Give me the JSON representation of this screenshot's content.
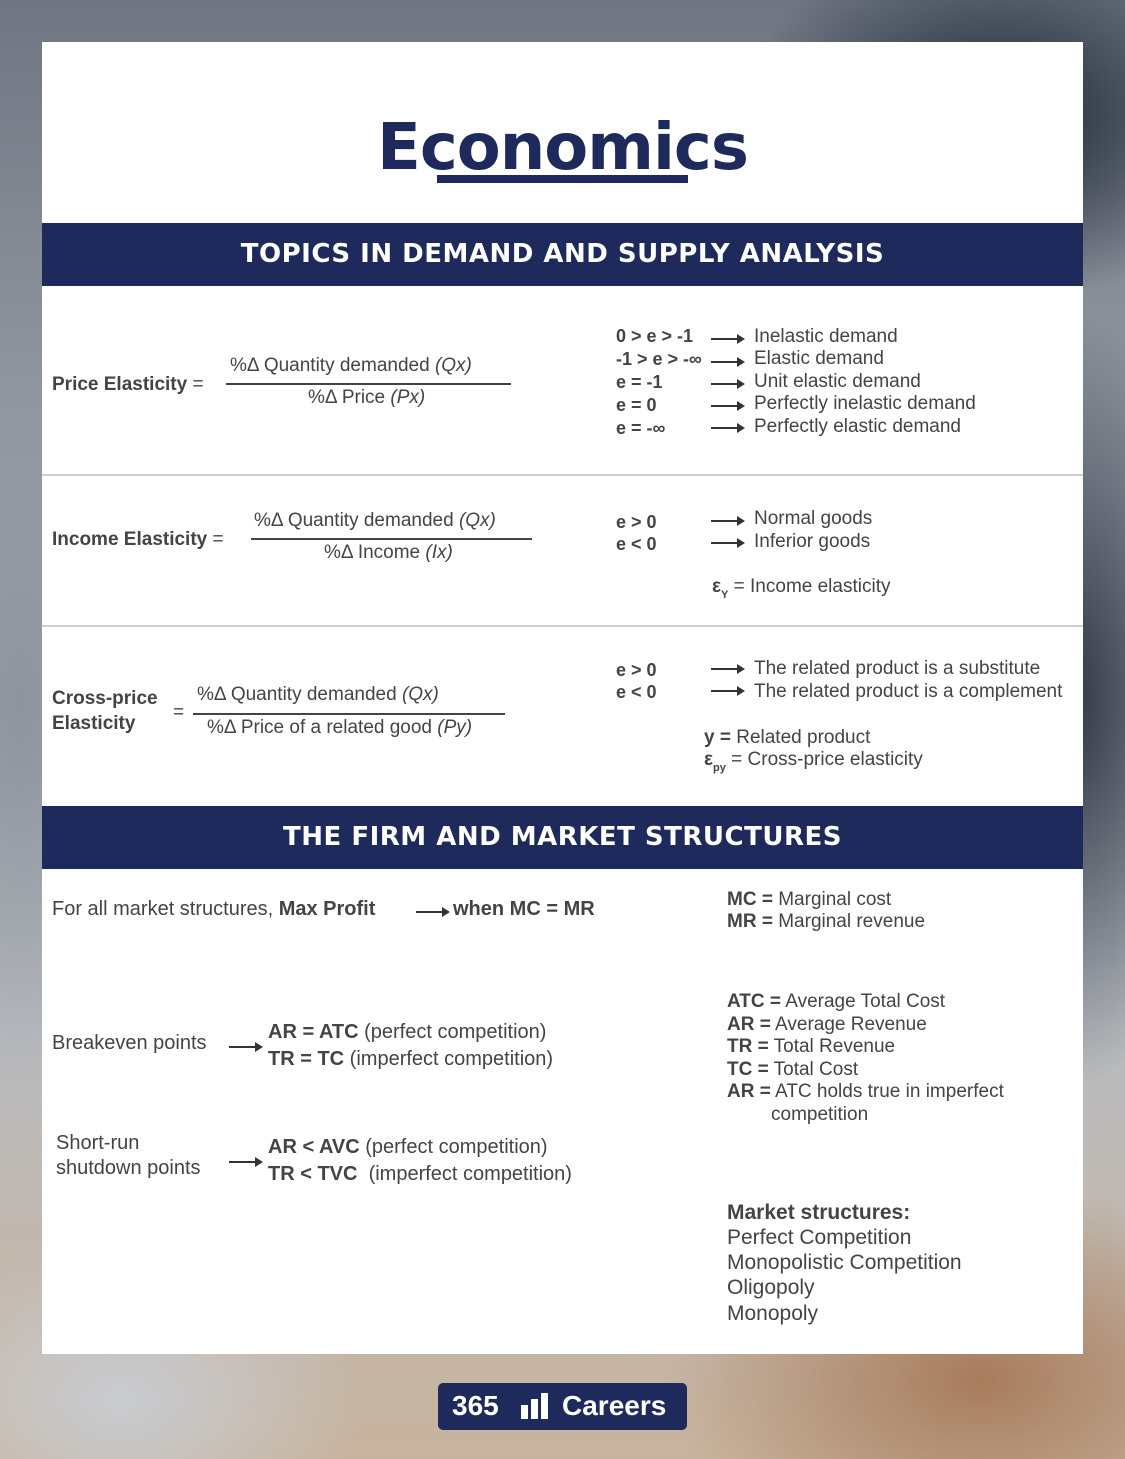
{
  "title": "Economics",
  "sections": {
    "demand": "TOPICS IN DEMAND AND SUPPLY ANALYSIS",
    "firm": "THE FIRM AND MARKET STRUCTURES"
  },
  "price_elasticity": {
    "label": "Price Elasticity",
    "eq": "=",
    "num_a": "%Δ Quantity demanded ",
    "num_b": "(Qx)",
    "den_a": "%Δ Price ",
    "den_b": "(Px)",
    "rules": [
      {
        "cond": "0 > e > -1",
        "result": "Inelastic demand"
      },
      {
        "cond": "-1 > e > -∞",
        "result": "Elastic demand"
      },
      {
        "cond": "e = -1",
        "result": "Unit elastic demand"
      },
      {
        "cond": "e = 0",
        "result": "Perfectly inelastic demand"
      },
      {
        "cond": "e = -∞",
        "result": "Perfectly elastic demand"
      }
    ]
  },
  "income_elasticity": {
    "label": "Income Elasticity",
    "eq": "=",
    "num_a": "%Δ Quantity demanded ",
    "num_b": "(Qx)",
    "den_a": "%Δ Income ",
    "den_b": "(Ix)",
    "rules": [
      {
        "cond": "e > 0",
        "result": "Normal goods"
      },
      {
        "cond": "e < 0",
        "result": "Inferior goods"
      }
    ],
    "note_sym": "ε",
    "note_sub": "Y",
    "note_text": " = Income elasticity"
  },
  "cross_elasticity": {
    "label_1": "Cross-price",
    "label_2": "Elasticity",
    "eq": "=",
    "num_a": "%Δ Quantity demanded ",
    "num_b": "(Qx)",
    "den_a": "%Δ Price of a related good ",
    "den_b": "(Py)",
    "rules": [
      {
        "cond": "e > 0",
        "result": "The related product is a substitute"
      },
      {
        "cond": "e < 0",
        "result": "The related product is a complement"
      }
    ],
    "note1_sym": "y =",
    "note1_text": " Related product",
    "note2_sym": "ε",
    "note2_sub": "py",
    "note2_text": " = Cross-price elasticity"
  },
  "firm": {
    "max_profit_pre": "For all market structures, ",
    "max_profit_bold": "Max Profit",
    "max_profit_result": "when MC = MR",
    "breakeven_label": "Breakeven points",
    "breakeven_1_bold": "AR = ATC",
    "breakeven_1_rest": " (perfect competition)",
    "breakeven_2_bold": "TR = TC",
    "breakeven_2_rest": " (imperfect competition)",
    "shutdown_label_1": "Short-run",
    "shutdown_label_2": "shutdown points",
    "shutdown_1_bold": "AR < AVC",
    "shutdown_1_rest": " (perfect competition)",
    "shutdown_2_bold": "TR < TVC",
    "shutdown_2_rest": "  (imperfect competition)",
    "defs_1": [
      {
        "abbr": "MC =",
        "text": " Marginal cost"
      },
      {
        "abbr": "MR =",
        "text": " Marginal revenue"
      }
    ],
    "defs_2": [
      {
        "abbr": "ATC =",
        "text": " Average Total Cost"
      },
      {
        "abbr": "AR =",
        "text": " Average Revenue"
      },
      {
        "abbr": "TR =",
        "text": " Total Revenue"
      },
      {
        "abbr": "TC =",
        "text": " Total Cost"
      },
      {
        "abbr": "AR =",
        "text": " ATC holds true in imperfect"
      }
    ],
    "defs_2_cont": "competition",
    "market_title": "Market structures:",
    "market_items": [
      "Perfect Competition",
      "Monopolistic Competition",
      "Oligopoly",
      "Monopoly"
    ]
  },
  "logo": {
    "left": "365",
    "right": "Careers"
  },
  "colors": {
    "navy": "#1f2a5c",
    "text": "#444444",
    "divider": "#cfcfcf"
  }
}
